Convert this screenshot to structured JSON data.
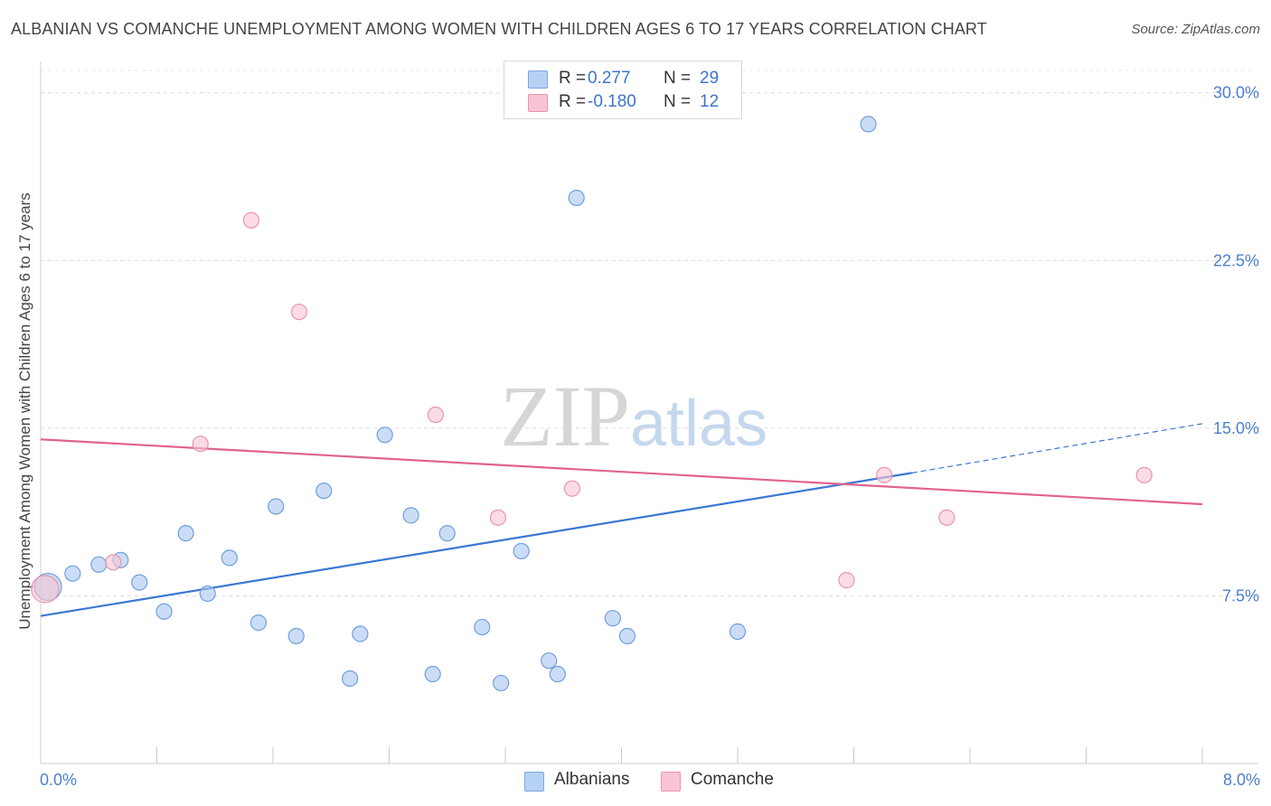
{
  "title": "ALBANIAN VS COMANCHE UNEMPLOYMENT AMONG WOMEN WITH CHILDREN AGES 6 TO 17 YEARS CORRELATION CHART",
  "source": "Source: ZipAtlas.com",
  "watermark": {
    "zip": "ZIP",
    "atlas": "atlas"
  },
  "legend": {
    "rows": [
      {
        "r_label": "R =",
        "r_value": "0.277",
        "n_label": "N =",
        "n_value": "29",
        "color": "#b7d1f5",
        "border": "#7ba6e3"
      },
      {
        "r_label": "R =",
        "r_value": "-0.180",
        "n_label": "N =",
        "n_value": "12",
        "color": "#f9c5d4",
        "border": "#ec94ad"
      }
    ]
  },
  "bottom_legend": [
    {
      "label": "Albanians",
      "color": "#b7d1f5",
      "border": "#7ba6e3"
    },
    {
      "label": "Comanche",
      "color": "#f9c5d4",
      "border": "#ec94ad"
    }
  ],
  "chart_data": {
    "type": "scatter",
    "title": "ALBANIAN VS COMANCHE UNEMPLOYMENT AMONG WOMEN WITH CHILDREN AGES 6 TO 17 YEARS CORRELATION CHART",
    "xlabel": "",
    "ylabel": "Unemployment Among Women with Children Ages 6 to 17 years",
    "xlim": [
      0.0,
      8.0
    ],
    "ylim": [
      0.0,
      31.0
    ],
    "x_tick_labels": [
      "0.0%",
      "8.0%"
    ],
    "y_ticks": [
      7.5,
      15.0,
      22.5,
      30.0
    ],
    "y_tick_labels": [
      "7.5%",
      "15.0%",
      "22.5%",
      "30.0%"
    ],
    "grid": "horizontal dashed",
    "legend_position": "top-center",
    "series": [
      {
        "name": "Albanians",
        "color": "#a9c7f0",
        "stroke": "#6f9fe0",
        "line_color": "#3a78d4",
        "points": [
          {
            "x": 0.05,
            "y": 7.9,
            "size": "large"
          },
          {
            "x": 0.22,
            "y": 8.5
          },
          {
            "x": 0.4,
            "y": 8.9
          },
          {
            "x": 0.55,
            "y": 9.1
          },
          {
            "x": 0.68,
            "y": 8.1
          },
          {
            "x": 0.85,
            "y": 6.8
          },
          {
            "x": 1.0,
            "y": 10.3
          },
          {
            "x": 1.15,
            "y": 7.6
          },
          {
            "x": 1.3,
            "y": 9.2
          },
          {
            "x": 1.5,
            "y": 6.3
          },
          {
            "x": 1.62,
            "y": 11.5
          },
          {
            "x": 1.76,
            "y": 5.7
          },
          {
            "x": 1.95,
            "y": 12.2
          },
          {
            "x": 2.13,
            "y": 3.8
          },
          {
            "x": 2.2,
            "y": 5.8
          },
          {
            "x": 2.37,
            "y": 14.7
          },
          {
            "x": 2.55,
            "y": 11.1
          },
          {
            "x": 2.7,
            "y": 4.0
          },
          {
            "x": 2.8,
            "y": 10.3
          },
          {
            "x": 3.04,
            "y": 6.1
          },
          {
            "x": 3.17,
            "y": 3.6
          },
          {
            "x": 3.31,
            "y": 9.5
          },
          {
            "x": 3.5,
            "y": 4.6
          },
          {
            "x": 3.56,
            "y": 4.0
          },
          {
            "x": 3.69,
            "y": 25.3
          },
          {
            "x": 3.94,
            "y": 6.5
          },
          {
            "x": 4.04,
            "y": 5.7
          },
          {
            "x": 4.8,
            "y": 5.9
          },
          {
            "x": 5.7,
            "y": 28.6
          }
        ],
        "trend": {
          "x0": 0.0,
          "y0": 6.6,
          "x1": 6.0,
          "y1": 13.0,
          "dashed_to_x": 8.0,
          "dashed_to_y": 15.2
        }
      },
      {
        "name": "Comanche",
        "color": "#f9c5d4",
        "stroke": "#ec94ad",
        "line_color": "#e0648a",
        "points": [
          {
            "x": 0.03,
            "y": 7.8,
            "size": "large"
          },
          {
            "x": 0.5,
            "y": 9.0
          },
          {
            "x": 1.1,
            "y": 14.3
          },
          {
            "x": 1.45,
            "y": 24.3
          },
          {
            "x": 1.78,
            "y": 20.2
          },
          {
            "x": 2.72,
            "y": 15.6
          },
          {
            "x": 3.15,
            "y": 11.0
          },
          {
            "x": 3.66,
            "y": 12.3
          },
          {
            "x": 5.55,
            "y": 8.2
          },
          {
            "x": 5.81,
            "y": 12.9
          },
          {
            "x": 6.24,
            "y": 11.0
          },
          {
            "x": 7.6,
            "y": 12.9
          }
        ],
        "trend": {
          "x0": 0.0,
          "y0": 14.5,
          "x1": 8.0,
          "y1": 11.6
        }
      }
    ]
  }
}
